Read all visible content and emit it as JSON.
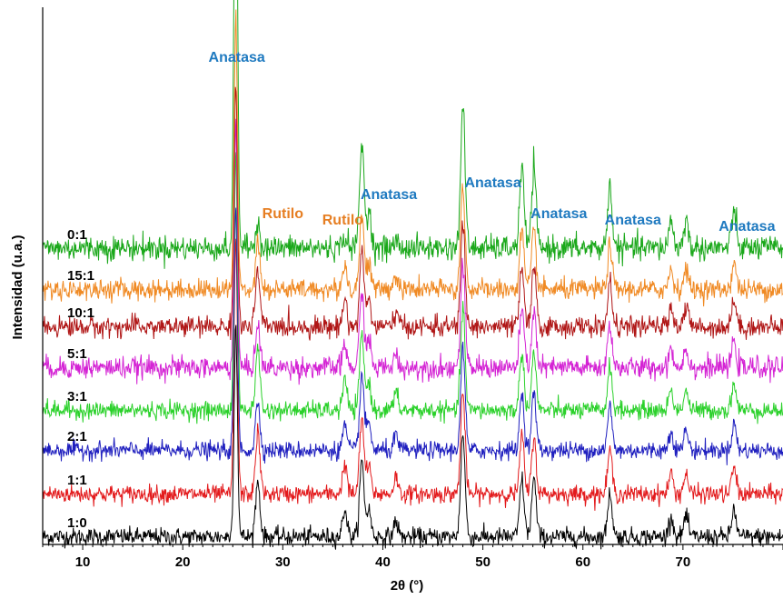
{
  "chart_data": {
    "type": "line",
    "title": "",
    "xlabel": "2θ (°)",
    "ylabel": "Intensidad (u.a.)",
    "xlim": [
      6,
      80
    ],
    "xticks": [
      "10",
      "20",
      "30",
      "40",
      "50",
      "60",
      "70"
    ],
    "y_scale": "arbitrary units, patterns stacked with vertical offset",
    "grid": false,
    "legend": "labels placed at left of each trace",
    "peaks": [
      {
        "x": 25.3,
        "phase": "anatase",
        "rel": 1.0
      },
      {
        "x": 27.5,
        "phase": "rutile",
        "rel": 0.18
      },
      {
        "x": 36.2,
        "phase": "rutile",
        "rel": 0.09
      },
      {
        "x": 37.9,
        "phase": "anatase",
        "rel": 0.22
      },
      {
        "x": 38.6,
        "phase": "anatase",
        "rel": 0.08
      },
      {
        "x": 41.3,
        "phase": "rutile",
        "rel": 0.05
      },
      {
        "x": 48.0,
        "phase": "anatase",
        "rel": 0.3
      },
      {
        "x": 53.9,
        "phase": "anatase",
        "rel": 0.17
      },
      {
        "x": 55.1,
        "phase": "anatase",
        "rel": 0.17
      },
      {
        "x": 62.7,
        "phase": "anatase",
        "rel": 0.13
      },
      {
        "x": 68.8,
        "phase": "anatase",
        "rel": 0.06
      },
      {
        "x": 70.3,
        "phase": "anatase",
        "rel": 0.06
      },
      {
        "x": 75.1,
        "phase": "anatase",
        "rel": 0.08
      }
    ],
    "series": [
      {
        "name": "1:0",
        "color": "#000000",
        "main_peak": 0.62,
        "rutile_scale": 0.9,
        "noise": 0.013
      },
      {
        "name": "1:1",
        "color": "#e31a1c",
        "main_peak": 0.75,
        "rutile_scale": 1.0,
        "noise": 0.013
      },
      {
        "name": "2:1",
        "color": "#1f1fbf",
        "main_peak": 0.7,
        "rutile_scale": 0.8,
        "noise": 0.013
      },
      {
        "name": "3:1",
        "color": "#2bd12b",
        "main_peak": 0.75,
        "rutile_scale": 1.0,
        "noise": 0.013
      },
      {
        "name": "5:1",
        "color": "#d423d4",
        "main_peak": 0.72,
        "rutile_scale": 0.7,
        "noise": 0.016
      },
      {
        "name": "10:1",
        "color": "#b01616",
        "main_peak": 0.72,
        "rutile_scale": 0.9,
        "noise": 0.015
      },
      {
        "name": "15:1",
        "color": "#f08a24",
        "main_peak": 0.8,
        "rutile_scale": 0.8,
        "noise": 0.015
      },
      {
        "name": "0:1",
        "color": "#1aa81a",
        "main_peak": 1.0,
        "rutile_scale": 0.3,
        "noise": 0.013
      }
    ],
    "annotations": [
      {
        "text": "Anatasa",
        "x": 25.4,
        "color": "#1f7ac0"
      },
      {
        "text": "Rutilo",
        "x": 30.0,
        "color": "#e67e22"
      },
      {
        "text": "Rutilo",
        "x": 36.0,
        "color": "#e67e22"
      },
      {
        "text": "Anatasa",
        "x": 40.6,
        "color": "#1f7ac0"
      },
      {
        "text": "Anatasa",
        "x": 51.0,
        "color": "#1f7ac0"
      },
      {
        "text": "Anatasa",
        "x": 57.6,
        "color": "#1f7ac0"
      },
      {
        "text": "Anatasa",
        "x": 65.0,
        "color": "#1f7ac0"
      },
      {
        "text": "Anatasa",
        "x": 76.4,
        "color": "#1f7ac0"
      }
    ]
  }
}
